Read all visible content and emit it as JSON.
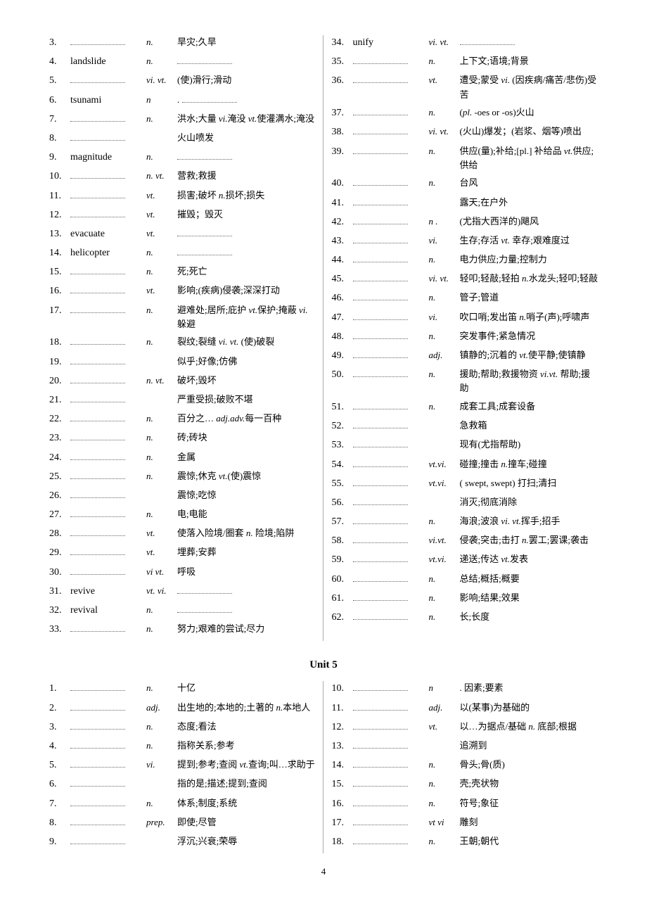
{
  "page_number": "4",
  "unit5_title": "Unit 5",
  "section1": {
    "left": [
      {
        "n": "3.",
        "w": "",
        "p": "n.",
        "d": "旱灾;久旱"
      },
      {
        "n": "4.",
        "w": "landslide",
        "p": "n.",
        "d": "",
        "blank_after": true
      },
      {
        "n": "5.",
        "w": "",
        "p": "vi. vt.",
        "d": "(使)滑行;滑动"
      },
      {
        "n": "6.",
        "w": "tsunami",
        "p": "n",
        "d": ".",
        "blank_after": true
      },
      {
        "n": "7.",
        "w": "",
        "p": "n.",
        "d": "洪水;大量 <span class='pos-inline'>vi.</span>淹没 <span class='pos-inline'>vt.</span>使灌满水;淹没"
      },
      {
        "n": "8.",
        "w": "",
        "p": "",
        "d": "火山喷发"
      },
      {
        "n": "9.",
        "w": "magnitude",
        "p": "n.",
        "d": "",
        "blank_after": true
      },
      {
        "n": "10.",
        "w": "",
        "p": "n. vt.",
        "d": "营救;救援"
      },
      {
        "n": "11.",
        "w": "",
        "p": "vt.",
        "d": "损害;破坏  <span class='pos-inline'>n.</span>损坏;损失"
      },
      {
        "n": "12.",
        "w": "",
        "p": "vt.",
        "d": "摧毁；毁灭"
      },
      {
        "n": "13.",
        "w": "evacuate",
        "p": "vt.",
        "d": "",
        "blank_after": true
      },
      {
        "n": "14.",
        "w": "helicopter",
        "p": "n.",
        "d": "",
        "blank_after": true
      },
      {
        "n": "15.",
        "w": "",
        "p": "n.",
        "d": "死;死亡"
      },
      {
        "n": "16.",
        "w": "",
        "p": "vt.",
        "d": "影响;(疾病)侵袭;深深打动"
      },
      {
        "n": "17.",
        "w": "",
        "p": "n.",
        "d": "避难处;居所;庇护 <span class='pos-inline'>vt.</span>保护;掩蔽 <span class='pos-inline'>vi.</span> 躲避"
      },
      {
        "n": "18.",
        "w": "",
        "p": "n.",
        "d": "裂纹;裂缝 <span class='pos-inline'>vi.  vt.</span> (使)破裂"
      },
      {
        "n": "19.",
        "w": "",
        "p": "",
        "d": "似乎;好像;仿佛"
      },
      {
        "n": "20.",
        "w": "",
        "p": "n. vt.",
        "d": "破坏;毁坏"
      },
      {
        "n": "21.",
        "w": "",
        "p": "",
        "d": "严重受损;破败不堪"
      },
      {
        "n": "22.",
        "w": "",
        "p": "n.",
        "d": "百分之… <span class='pos-inline'>adj.adv.</span>每一百种"
      },
      {
        "n": "23.",
        "w": "",
        "p": "n.",
        "d": "砖;砖块"
      },
      {
        "n": "24.",
        "w": "",
        "p": "n.",
        "d": "金属"
      },
      {
        "n": "25.",
        "w": "",
        "p": "n.",
        "d": "震惊;休克  <span class='pos-inline'>vt.</span>(使)震惊"
      },
      {
        "n": "26.",
        "w": "",
        "p": "",
        "d": "震惊;吃惊"
      },
      {
        "n": "27.",
        "w": "",
        "p": "n.",
        "d": "电;电能"
      },
      {
        "n": "28.",
        "w": "",
        "p": "vt.",
        "d": "使落入险境/圈套  <span class='pos-inline'>n.</span> 险境;陷阱"
      },
      {
        "n": "29.",
        "w": "",
        "p": "vt.",
        "d": "埋葬;安葬"
      },
      {
        "n": "30.",
        "w": "",
        "p": "vi vt.",
        "d": "呼吸"
      },
      {
        "n": "31.",
        "w": "revive",
        "p": "vt. vi.",
        "d": "",
        "blank_after": true
      },
      {
        "n": "32.",
        "w": "revival",
        "p": "n.",
        "d": "",
        "blank_after": true
      },
      {
        "n": "33.",
        "w": "",
        "p": "n.",
        "d": "努力;艰难的尝试;尽力"
      }
    ],
    "right": [
      {
        "n": "34.",
        "w": "unify",
        "p": "vi. vt.",
        "d": "",
        "blank_after": true
      },
      {
        "n": "35.",
        "w": "",
        "p": "n.",
        "d": "上下文;语境;背景"
      },
      {
        "n": "36.",
        "w": "",
        "p": "vt.",
        "d": "遭受;蒙受 <span class='pos-inline'>vi.</span> (因疾病/痛苦/悲伤)受苦"
      },
      {
        "n": "37.",
        "w": "",
        "p": "n.",
        "d": "(<span class='pos-inline'>pl.</span> -oes or -os)火山"
      },
      {
        "n": "38.",
        "w": "",
        "p": "vi. vt.",
        "d": "(火山)爆发；(岩浆、烟等)喷出"
      },
      {
        "n": "39.",
        "w": "",
        "p": "n.",
        "d": "供应(量);补给;[pl.] 补给品 <span class='pos-inline'>vt.</span>供应;供给"
      },
      {
        "n": "40.",
        "w": "",
        "p": "n.",
        "d": "台风"
      },
      {
        "n": "41.",
        "w": "",
        "p": "",
        "d": "露天;在户外"
      },
      {
        "n": "42.",
        "w": "",
        "p": "n .",
        "d": "(尤指大西洋的)飓风"
      },
      {
        "n": "43.",
        "w": "",
        "p": "vi.",
        "d": "生存;存活 <span class='pos-inline'>vt.</span> 幸存;艰难度过"
      },
      {
        "n": "44.",
        "w": "",
        "p": "n.",
        "d": "电力供应;力量;控制力"
      },
      {
        "n": "45.",
        "w": "",
        "p": "vi. vt.",
        "d": "轻叩;轻敲;轻拍 <span class='pos-inline'>n.</span>水龙头;轻叩;轻敲"
      },
      {
        "n": "46.",
        "w": "",
        "p": "n.",
        "d": "管子;管道"
      },
      {
        "n": "47.",
        "w": "",
        "p": "vi.",
        "d": "吹口哨;发出笛 <span class='pos-inline'>n.</span>哨子(声);呼啸声"
      },
      {
        "n": "48.",
        "w": "",
        "p": "n.",
        "d": "突发事件;紧急情况"
      },
      {
        "n": "49.",
        "w": "",
        "p": "adj.",
        "d": "镇静的;沉着的  <span class='pos-inline'>vt.</span>使平静;使镇静"
      },
      {
        "n": "50.",
        "w": "",
        "p": "n.",
        "d": "援助;帮助;救援物资 <span class='pos-inline'>vi.vt.</span> 帮助;援助"
      },
      {
        "n": "51.",
        "w": "",
        "p": "n.",
        "d": "成套工具;成套设备"
      },
      {
        "n": "52.",
        "w": "",
        "p": "",
        "d": "急救箱"
      },
      {
        "n": "53.",
        "w": "",
        "p": "",
        "d": "现有(尤指帮助)"
      },
      {
        "n": "54.",
        "w": "",
        "p": "vt.vi.",
        "d": "碰撞;撞击 <span class='pos-inline'>n.</span>撞车;碰撞"
      },
      {
        "n": "55.",
        "w": "",
        "p": "vt.vi.",
        "d": "( swept, swept) 打扫;清扫"
      },
      {
        "n": "56.",
        "w": "",
        "p": "",
        "d": "消灭;彻底消除"
      },
      {
        "n": "57.",
        "w": "",
        "p": "n.",
        "d": "海浪;波浪 <span class='pos-inline'>vi. vt.</span>挥手;招手"
      },
      {
        "n": "58.",
        "w": "",
        "p": "vi.vt.",
        "d": "侵袭;突击;击打 <span class='pos-inline'>n.</span>罢工;罢课;袭击"
      },
      {
        "n": "59.",
        "w": "",
        "p": "vt.vi.",
        "d": "递送;传达 <span class='pos-inline'>vt.</span>发表"
      },
      {
        "n": "60.",
        "w": "",
        "p": "n.",
        "d": "总结;概括;概要"
      },
      {
        "n": "61.",
        "w": "",
        "p": "n.",
        "d": "影响;结果;效果"
      },
      {
        "n": "62.",
        "w": "",
        "p": "n.",
        "d": "长;长度"
      }
    ]
  },
  "section2": {
    "left": [
      {
        "n": "1.",
        "w": "",
        "p": "n.",
        "d": "十亿"
      },
      {
        "n": "2.",
        "w": "",
        "p": "adj.",
        "d": "出生地的;本地的;土著的 <span class='pos-inline'>n.</span>本地人"
      },
      {
        "n": "3.",
        "w": "",
        "p": "n.",
        "d": "态度;看法"
      },
      {
        "n": "4.",
        "w": "",
        "p": "n.",
        "d": "指称关系;参考"
      },
      {
        "n": "5.",
        "w": "",
        "p": "vi.",
        "d": "提到;参考;查阅  <span class='pos-inline'>vt.</span>查询;叫…求助于"
      },
      {
        "n": "6.",
        "w": "",
        "p": "",
        "d": "指的是;描述;提到;查阅"
      },
      {
        "n": "7.",
        "w": "",
        "p": "n.",
        "d": "体系;制度;系统"
      },
      {
        "n": "8.",
        "w": "",
        "p": "prep.",
        "d": "即使;尽管"
      },
      {
        "n": "9.",
        "w": "",
        "p": "",
        "d": "浮沉;兴衰;荣辱"
      }
    ],
    "right": [
      {
        "n": "10.",
        "w": "",
        "p": "n",
        "d": ". 因素;要素"
      },
      {
        "n": "11.",
        "w": "",
        "p": "adj.",
        "d": "以(某事)为基础的"
      },
      {
        "n": "12.",
        "w": "",
        "p": "vt.",
        "d": "以…为据点/基础 <span class='pos-inline'>n.</span> 底部;根据"
      },
      {
        "n": "13.",
        "w": "",
        "p": "",
        "d": "追溯到"
      },
      {
        "n": "14.",
        "w": "",
        "p": "n.",
        "d": "骨头;骨(质)"
      },
      {
        "n": "15.",
        "w": "",
        "p": "n.",
        "d": "壳;壳状物"
      },
      {
        "n": "16.",
        "w": "",
        "p": "n.",
        "d": "符号;象征"
      },
      {
        "n": "17.",
        "w": "",
        "p": "vt vi",
        "d": "雕刻"
      },
      {
        "n": "18.",
        "w": "",
        "p": "n.",
        "d": "王朝;朝代"
      }
    ]
  }
}
